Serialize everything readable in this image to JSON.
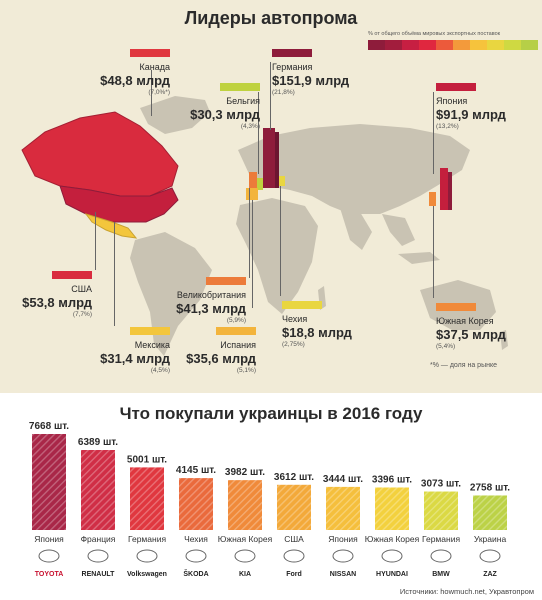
{
  "map": {
    "title": "Лидеры автопрома",
    "legend_text": "% от общего объёма мировых экспортных поставок",
    "legend_colors": [
      "#8e1c3b",
      "#a21d3d",
      "#c71f42",
      "#e0273f",
      "#ec5a3b",
      "#f39a3b",
      "#f6c33c",
      "#e9d640",
      "#cfd942",
      "#b6cf47"
    ],
    "share_note": "*% — доля на рынке",
    "countries": [
      {
        "name": "Канада",
        "value": "$48,8 млрд",
        "share": "(7,0%*)",
        "color": "#e0373f"
      },
      {
        "name": "Германия",
        "value": "$151,9 млрд",
        "share": "(21,8%)",
        "color": "#8e1c3b"
      },
      {
        "name": "Бельгия",
        "value": "$30,3 млрд",
        "share": "(4,3%)",
        "color": "#bfd23f"
      },
      {
        "name": "Япония",
        "value": "$91,9 млрд",
        "share": "(13,2%)",
        "color": "#c41f3d"
      },
      {
        "name": "США",
        "value": "$53,8 млрд",
        "share": "(7,7%)",
        "color": "#d92b3e"
      },
      {
        "name": "Великобритания",
        "value": "$41,3 млрд",
        "share": "(5,9%)",
        "color": "#ec7b3a"
      },
      {
        "name": "Мексика",
        "value": "$31,4 млрд",
        "share": "(4,5%)",
        "color": "#f3c63c"
      },
      {
        "name": "Испания",
        "value": "$35,6 млрд",
        "share": "(5,1%)",
        "color": "#f3b43c"
      },
      {
        "name": "Чехия",
        "value": "$18,8 млрд",
        "share": "(2,75%)",
        "color": "#e9d640"
      },
      {
        "name": "Южная Корея",
        "value": "$37,5 млрд",
        "share": "(5,4%)",
        "color": "#f08a3a"
      }
    ]
  },
  "chart_data": {
    "type": "bar",
    "title": "Что покупали украинцы в 2016 году",
    "categories": [
      "Япония",
      "Франция",
      "Германия",
      "Чехия",
      "Южная Корея",
      "США",
      "Япония",
      "Южная Корея",
      "Германия",
      "Украина"
    ],
    "brands": [
      "TOYOTA",
      "RENAULT",
      "Volkswagen",
      "ŠKODA",
      "KIA",
      "Ford",
      "NISSAN",
      "HYUNDAI",
      "BMW",
      "ZAZ"
    ],
    "values": [
      7668,
      6389,
      5001,
      4145,
      3982,
      3612,
      3444,
      3396,
      3073,
      2758
    ],
    "value_labels": [
      "7668 шт.",
      "6389 шт.",
      "5001 шт.",
      "4145 шт.",
      "3982 шт.",
      "3612 шт.",
      "3444 шт.",
      "3396 шт.",
      "3073 шт.",
      "2758 шт."
    ],
    "colors": [
      "#a92748",
      "#d02e46",
      "#e0373f",
      "#ea6a3c",
      "#f08a3a",
      "#f3a93a",
      "#f5bf3c",
      "#f3d13e",
      "#dbd944",
      "#bcd247"
    ],
    "xlabel": "",
    "ylabel": ""
  },
  "source": "Источники: howmuch.net, Укравтопром"
}
